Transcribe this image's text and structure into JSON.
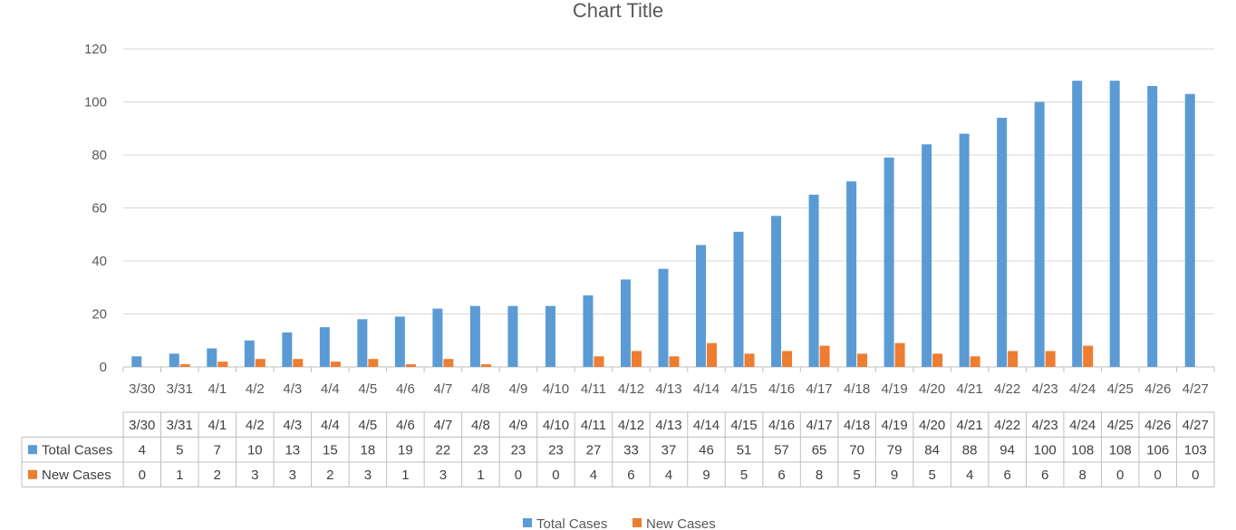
{
  "chart_data": {
    "type": "bar",
    "title": "Chart Title",
    "xlabel": "",
    "ylabel": "",
    "ylim": [
      0,
      120
    ],
    "yticks": [
      0,
      20,
      40,
      60,
      80,
      100,
      120
    ],
    "grid": true,
    "legend": "bottom",
    "data_table": true,
    "categories": [
      "3/30",
      "3/31",
      "4/1",
      "4/2",
      "4/3",
      "4/4",
      "4/5",
      "4/6",
      "4/7",
      "4/8",
      "4/9",
      "4/10",
      "4/11",
      "4/12",
      "4/13",
      "4/14",
      "4/15",
      "4/16",
      "4/17",
      "4/18",
      "4/19",
      "4/20",
      "4/21",
      "4/22",
      "4/23",
      "4/24",
      "4/25",
      "4/26",
      "4/27"
    ],
    "series": [
      {
        "name": "Total Cases",
        "color": "#5B9BD5",
        "values": [
          4,
          5,
          7,
          10,
          13,
          15,
          18,
          19,
          22,
          23,
          23,
          23,
          27,
          33,
          37,
          46,
          51,
          57,
          65,
          70,
          79,
          84,
          88,
          94,
          100,
          108,
          108,
          106,
          103
        ]
      },
      {
        "name": "New Cases",
        "color": "#ED7D31",
        "values": [
          0,
          1,
          2,
          3,
          3,
          2,
          3,
          1,
          3,
          1,
          0,
          0,
          4,
          6,
          4,
          9,
          5,
          6,
          8,
          5,
          9,
          5,
          4,
          6,
          6,
          8,
          0,
          0,
          0
        ]
      }
    ]
  }
}
